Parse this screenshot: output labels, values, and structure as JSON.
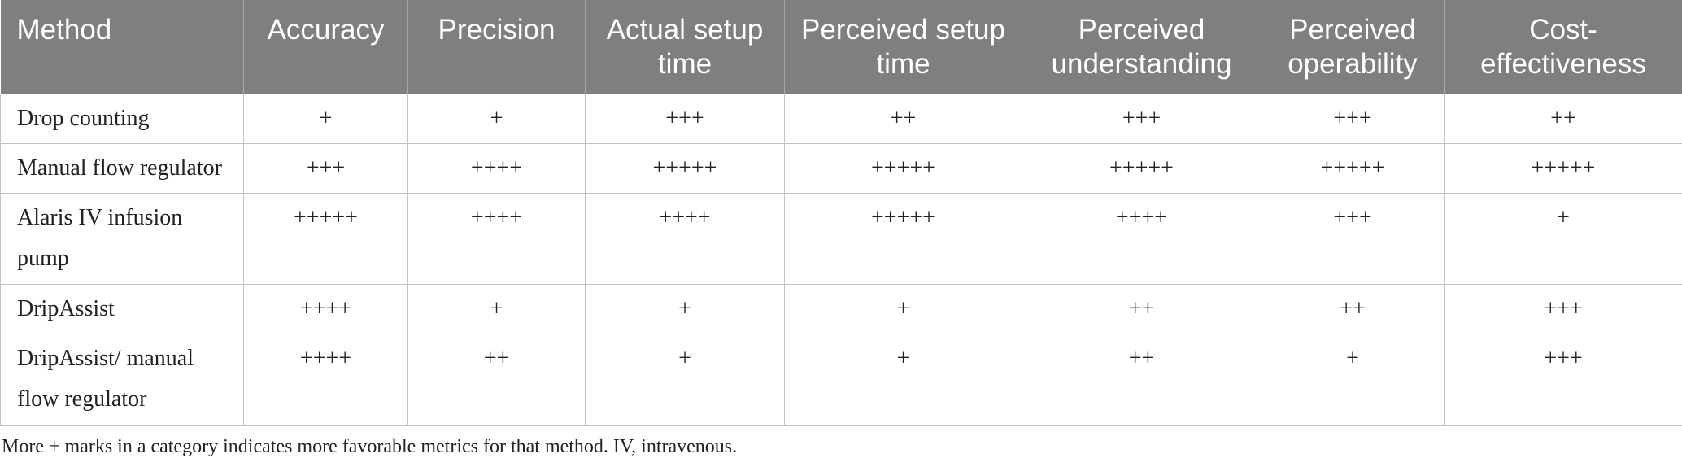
{
  "table": {
    "headers": [
      "Method",
      "Accuracy",
      "Precision",
      "Actual setup time",
      "Perceived setup time",
      "Perceived understanding",
      "Perceived operability",
      "Cost-effectiveness"
    ],
    "rows": [
      [
        "Drop counting",
        "+",
        "+",
        "+++",
        "++",
        "+++",
        "+++",
        "++"
      ],
      [
        "Manual flow regulator",
        "+++",
        "++++",
        "+++++",
        "+++++",
        "+++++",
        "+++++",
        "+++++"
      ],
      [
        "Alaris IV infusion pump",
        "+++++",
        "++++",
        "++++",
        "+++++",
        "++++",
        "+++",
        "+"
      ],
      [
        "DripAssist",
        "++++",
        "+",
        "+",
        "+",
        "++",
        "++",
        "+++"
      ],
      [
        "DripAssist/ manual flow regulator",
        "++++",
        "++",
        "+",
        "+",
        "++",
        "+",
        "+++"
      ]
    ]
  },
  "footnote": "More + marks in a category indicates more favorable metrics for that method. IV, intravenous."
}
